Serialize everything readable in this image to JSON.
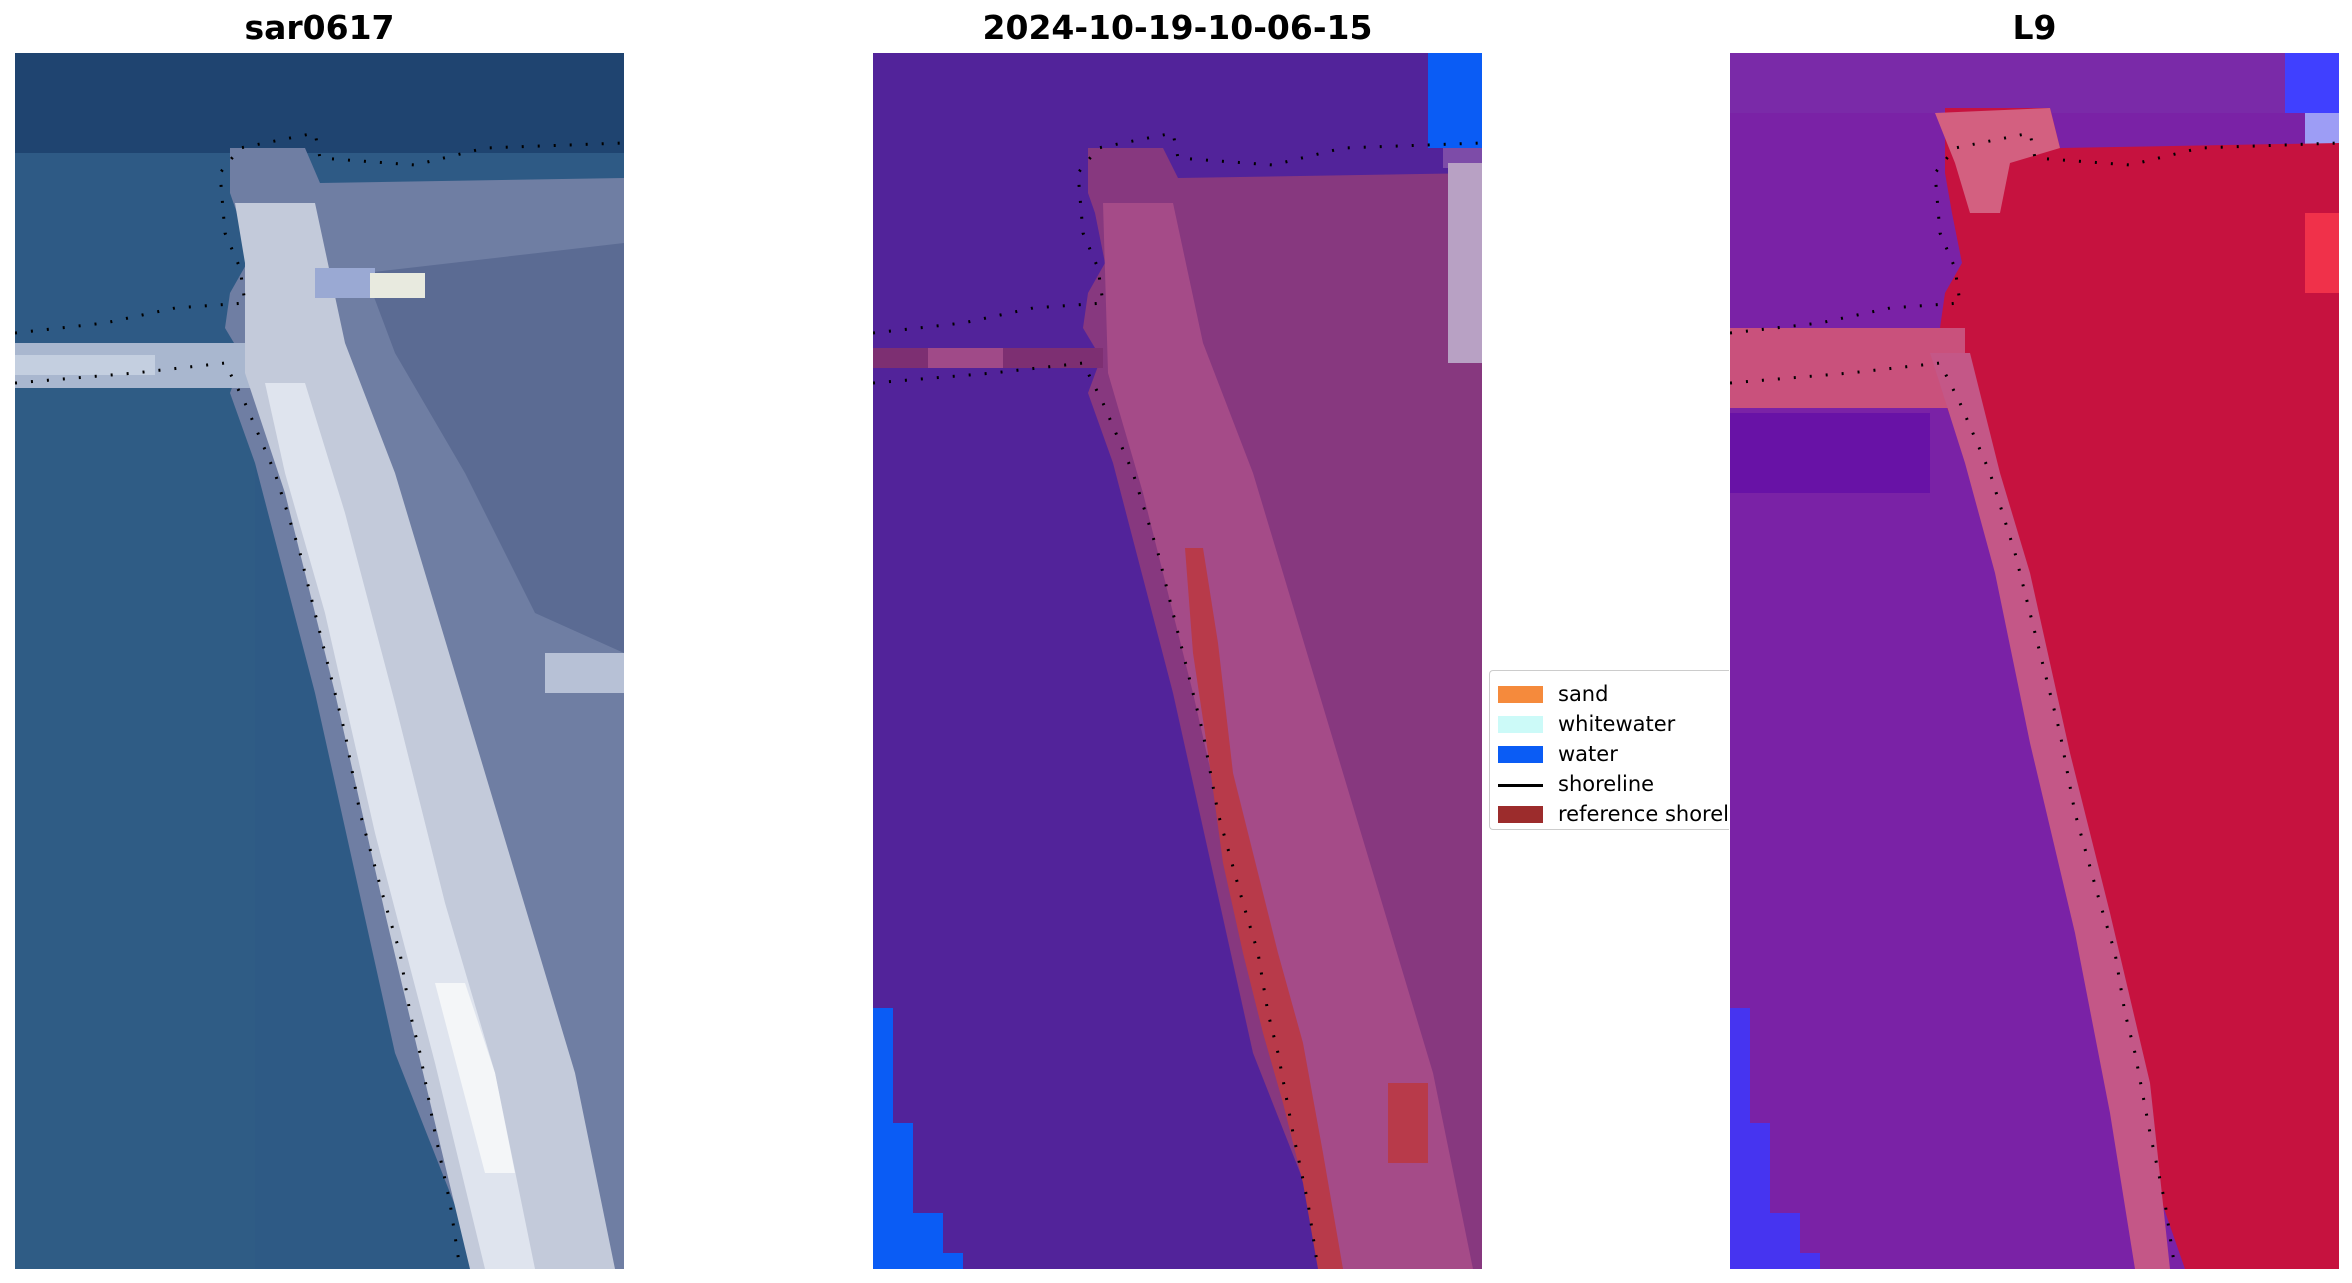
{
  "panels": [
    {
      "title": "sar0617"
    },
    {
      "title": "2024-10-19-10-06-15"
    },
    {
      "title": "L9"
    }
  ],
  "legend": {
    "items": [
      {
        "label": "sand",
        "color": "#f58a3c",
        "kind": "patch"
      },
      {
        "label": "whitewater",
        "color": "#ccfaf8",
        "kind": "patch"
      },
      {
        "label": "water",
        "color": "#0a5cf5",
        "kind": "patch"
      },
      {
        "label": "shoreline",
        "color": "#000000",
        "kind": "line"
      },
      {
        "label": "reference shoreline",
        "color": "#9c2c2c",
        "kind": "patch"
      }
    ]
  },
  "colors": {
    "rgb_water": "#2d5580",
    "rgb_land_gray": "#6e7c9e",
    "rgb_sand_bright": "#e9eef3",
    "class_water_bg": "#52239a",
    "class_land": "#8a3e86",
    "class_water_pixels": "#0a5cf5",
    "class_reference_shoreline": "#b83a4a",
    "mndwi_water": "#7b21a8",
    "mndwi_land": "#c8113e",
    "mndwi_water_strong": "#4634f0"
  }
}
